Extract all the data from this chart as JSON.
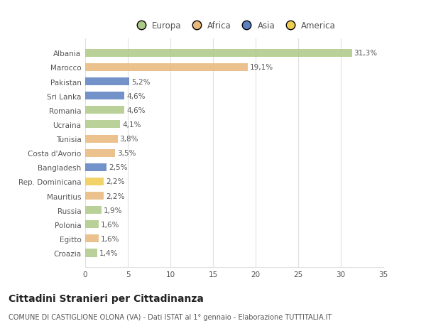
{
  "countries": [
    "Albania",
    "Marocco",
    "Pakistan",
    "Sri Lanka",
    "Romania",
    "Ucraina",
    "Tunisia",
    "Costa d'Avorio",
    "Bangladesh",
    "Rep. Dominicana",
    "Mauritius",
    "Russia",
    "Polonia",
    "Egitto",
    "Croazia"
  ],
  "values": [
    31.3,
    19.1,
    5.2,
    4.6,
    4.6,
    4.1,
    3.8,
    3.5,
    2.5,
    2.2,
    2.2,
    1.9,
    1.6,
    1.6,
    1.4
  ],
  "labels": [
    "31,3%",
    "19,1%",
    "5,2%",
    "4,6%",
    "4,6%",
    "4,1%",
    "3,8%",
    "3,5%",
    "2,5%",
    "2,2%",
    "2,2%",
    "1,9%",
    "1,6%",
    "1,6%",
    "1,4%"
  ],
  "continents": [
    "Europa",
    "Africa",
    "Asia",
    "Asia",
    "Europa",
    "Europa",
    "Africa",
    "Africa",
    "Asia",
    "America",
    "Africa",
    "Europa",
    "Europa",
    "Africa",
    "Europa"
  ],
  "continent_colors": {
    "Europa": "#adc986",
    "Africa": "#e8b87a",
    "Asia": "#5b7fc0",
    "America": "#f0cc50"
  },
  "legend_order": [
    "Europa",
    "Africa",
    "Asia",
    "America"
  ],
  "xlim": [
    0,
    35
  ],
  "xticks": [
    0,
    5,
    10,
    15,
    20,
    25,
    30,
    35
  ],
  "title": "Cittadini Stranieri per Cittadinanza",
  "subtitle": "COMUNE DI CASTIGLIONE OLONA (VA) - Dati ISTAT al 1° gennaio - Elaborazione TUTTITALIA.IT",
  "background_color": "#ffffff",
  "bar_height": 0.55,
  "grid_color": "#e0e0e0",
  "text_color": "#555555",
  "label_fontsize": 7.5,
  "tick_fontsize": 7.5,
  "title_fontsize": 10,
  "subtitle_fontsize": 7
}
